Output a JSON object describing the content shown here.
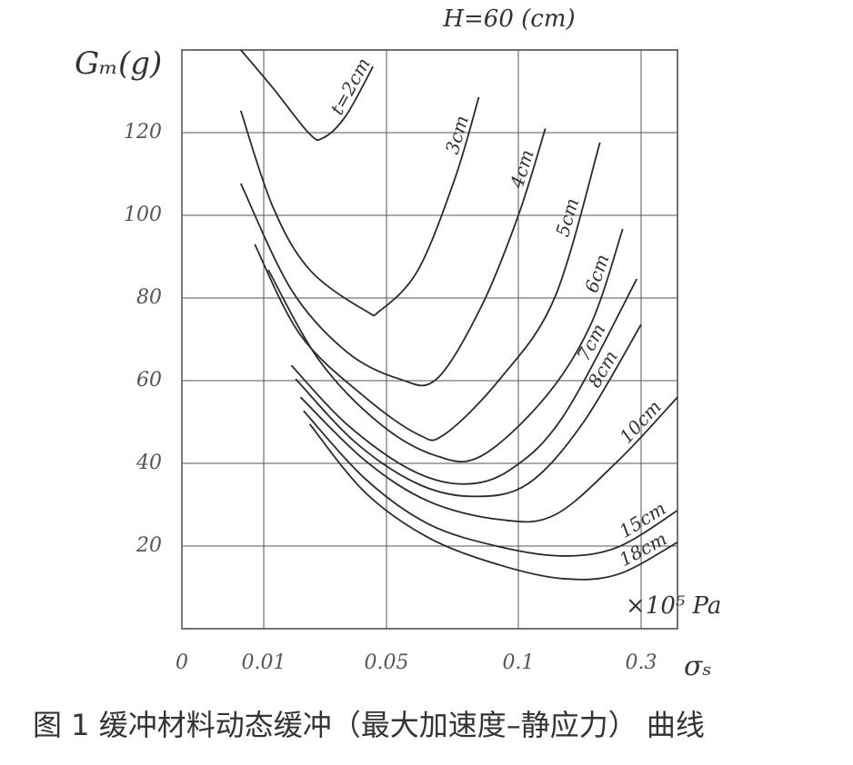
{
  "chart_data": {
    "type": "line",
    "title": "H=60 (cm)",
    "y_label": "Gₘ(g)",
    "x_label": "σₛ",
    "x_unit": "×10⁵ Pa",
    "caption": "图 1  缓冲材料动态缓冲（最大加速度–静应力） 曲线",
    "color": "#2a2a2a",
    "grid": true,
    "xlim": [
      0,
      0.4
    ],
    "xticks": [
      0,
      0.01,
      0.05,
      0.1,
      0.3
    ],
    "ylim": [
      0,
      140
    ],
    "yticks": [
      20,
      40,
      60,
      80,
      100,
      120
    ],
    "series": [
      {
        "name": "t=2cm",
        "x": [
          0.0072,
          0.013,
          0.0248,
          0.0293,
          0.0367,
          0.0456
        ],
        "values": [
          140,
          130.8,
          119.8,
          118.7,
          124,
          136
        ]
      },
      {
        "name": "3cm",
        "x": [
          0.0072,
          0.013,
          0.025,
          0.043,
          0.048,
          0.062,
          0.076,
          0.085
        ],
        "values": [
          125.3,
          102,
          86.8,
          77,
          77,
          86.8,
          109,
          128.6
        ]
      },
      {
        "name": "4cm",
        "x": [
          0.0072,
          0.019,
          0.037,
          0.055,
          0.069,
          0.086,
          0.1,
          0.144
        ],
        "values": [
          107.7,
          82,
          67,
          60.4,
          60.4,
          78,
          100,
          121
        ]
      },
      {
        "name": "5cm",
        "x": [
          0.0089,
          0.022,
          0.043,
          0.062,
          0.072,
          0.093,
          0.159,
          0.233
        ],
        "values": [
          93,
          71,
          56,
          47,
          47,
          60.4,
          80,
          117.6
        ]
      },
      {
        "name": "6cm",
        "x": [
          0.0115,
          0.028,
          0.048,
          0.069,
          0.086,
          0.144,
          0.218,
          0.27
        ],
        "values": [
          86.8,
          65,
          49.5,
          41.8,
          41.8,
          56,
          73.6,
          96.7
        ]
      },
      {
        "name": "7cm",
        "x": [
          0.019,
          0.037,
          0.059,
          0.079,
          0.097,
          0.174,
          0.293
        ],
        "values": [
          63.7,
          49.5,
          38.5,
          35,
          38.5,
          51.6,
          84.6
        ]
      },
      {
        "name": "8cm",
        "x": [
          0.0204,
          0.04,
          0.062,
          0.083,
          0.115,
          0.204,
          0.3
        ],
        "values": [
          60.4,
          45,
          35,
          32,
          35,
          49.5,
          73.6
        ]
      },
      {
        "name": "10cm",
        "x": [
          0.022,
          0.043,
          0.066,
          0.093,
          0.159,
          0.263,
          0.4
        ],
        "values": [
          56,
          40.7,
          30.8,
          26.4,
          27.5,
          40.7,
          56
        ]
      },
      {
        "name": "15cm",
        "x": [
          0.023,
          0.043,
          0.066,
          0.093,
          0.174,
          0.263,
          0.4
        ],
        "values": [
          52.7,
          36.3,
          25.3,
          19.8,
          17.6,
          19.8,
          28.6
        ]
      },
      {
        "name": "18cm",
        "x": [
          0.025,
          0.043,
          0.066,
          0.093,
          0.174,
          0.263,
          0.4
        ],
        "values": [
          49.5,
          33,
          22,
          15.4,
          12.1,
          13.2,
          20.9
        ]
      }
    ]
  }
}
